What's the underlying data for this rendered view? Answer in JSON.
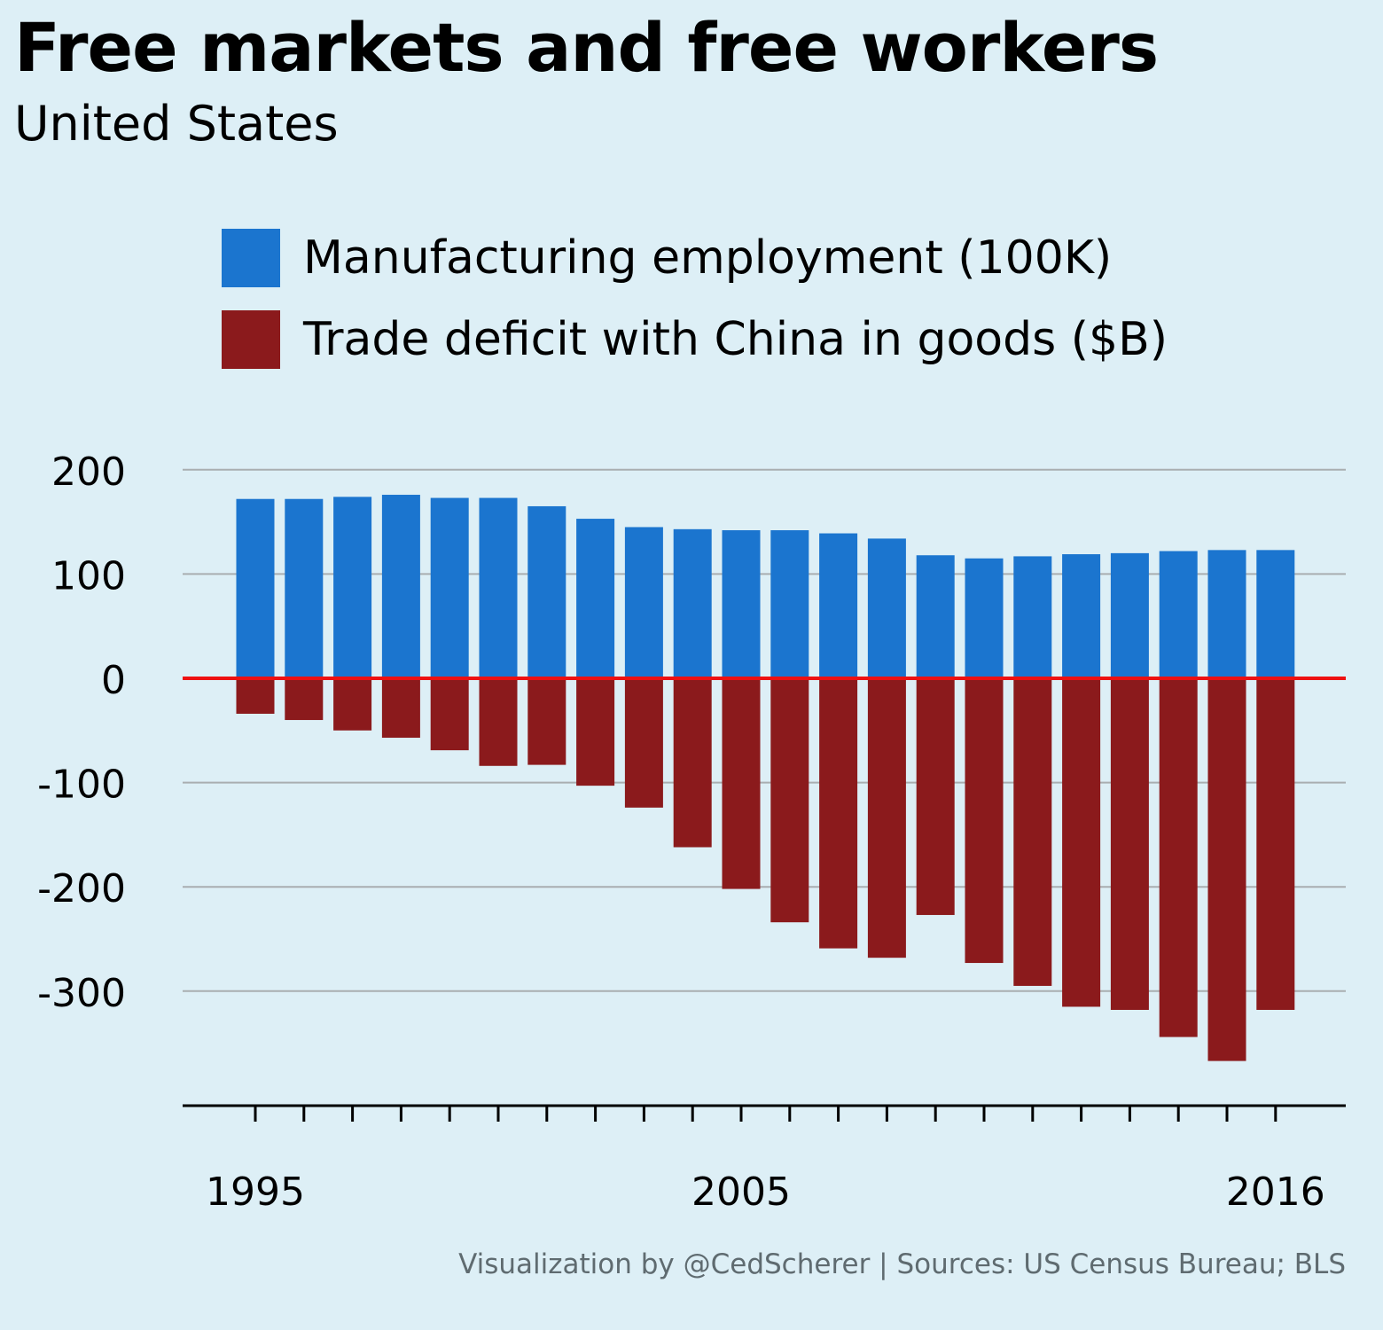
{
  "header": {
    "title": "Free markets and free workers",
    "subtitle": "United States"
  },
  "legend": {
    "items": [
      {
        "label": "Manufacturing employment (100K)",
        "color": "#1b75cf"
      },
      {
        "label": "Trade deficit with China in goods ($B)",
        "color": "#8b1a1c"
      }
    ]
  },
  "caption": "Visualization by @CedScherer  |  Sources: US Census Bureau; BLS",
  "chart_data": {
    "type": "bar",
    "x": [
      1995,
      1996,
      1997,
      1998,
      1999,
      2000,
      2001,
      2002,
      2003,
      2004,
      2005,
      2006,
      2007,
      2008,
      2009,
      2010,
      2011,
      2012,
      2013,
      2014,
      2015,
      2016
    ],
    "x_tick_labels": [
      "1995",
      "2005",
      "2016"
    ],
    "series": [
      {
        "name": "Manufacturing employment (100K)",
        "color": "#1b75cf",
        "values": [
          172,
          172,
          174,
          176,
          173,
          173,
          165,
          153,
          145,
          143,
          142,
          142,
          139,
          134,
          118,
          115,
          117,
          119,
          120,
          122,
          123,
          123
        ]
      },
      {
        "name": "Trade deficit with China in goods ($B)",
        "color": "#8b1a1c",
        "values": [
          -34,
          -40,
          -50,
          -57,
          -69,
          -84,
          -83,
          -103,
          -124,
          -162,
          -202,
          -234,
          -259,
          -268,
          -227,
          -273,
          -295,
          -315,
          -318,
          -344,
          -367,
          -318
        ]
      }
    ],
    "ylim": [
      -410,
      215
    ],
    "y_ticks": [
      200,
      100,
      0,
      -100,
      -200,
      -300
    ],
    "grid": true,
    "zero_line_color": "#ee1111",
    "legend_position": "top"
  }
}
